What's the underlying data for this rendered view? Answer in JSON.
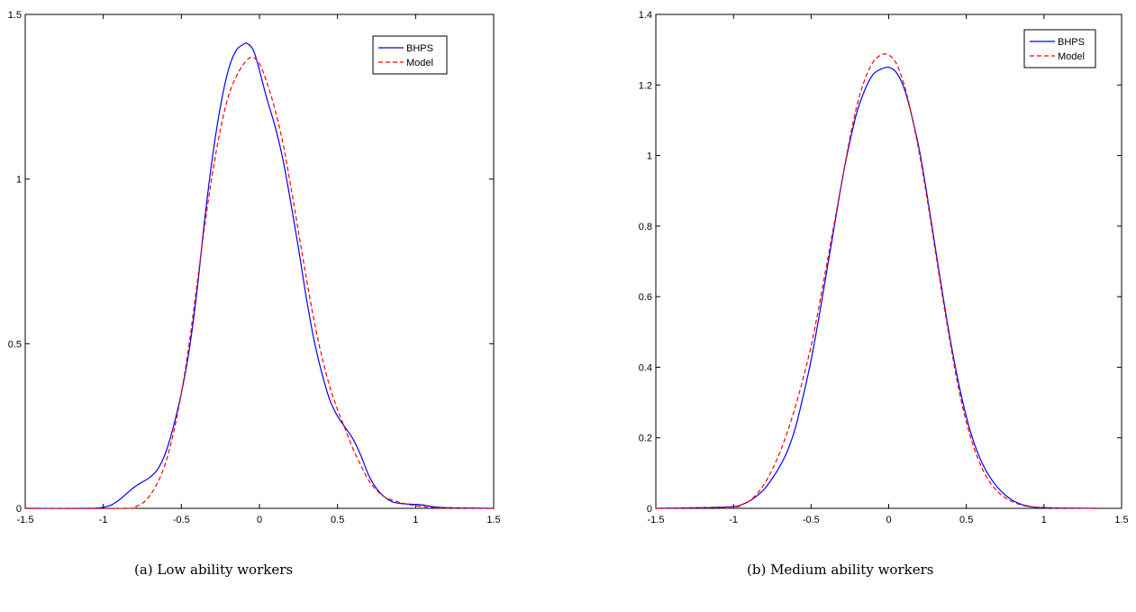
{
  "chart_data": [
    {
      "type": "line",
      "caption": "(a)  Low ability workers",
      "xlim": [
        -1.5,
        1.5
      ],
      "ylim": [
        0,
        1.5
      ],
      "xticks": [
        -1.5,
        -1,
        -0.5,
        0,
        0.5,
        1,
        1.5
      ],
      "xtick_labels": [
        "-1.5",
        "-1",
        "-0.5",
        "0",
        "0.5",
        "1",
        "1.5"
      ],
      "yticks": [
        0,
        0.5,
        1,
        1.5
      ],
      "ytick_labels": [
        "0",
        "0.5",
        "1",
        "1.5"
      ],
      "legend_position": "top-right",
      "grid": false,
      "series": [
        {
          "name": "BHPS",
          "color": "#0000ff",
          "style": "solid",
          "x": [
            -1.5,
            -1.1,
            -1.0,
            -0.95,
            -0.9,
            -0.85,
            -0.8,
            -0.75,
            -0.7,
            -0.65,
            -0.6,
            -0.55,
            -0.5,
            -0.45,
            -0.4,
            -0.35,
            -0.3,
            -0.25,
            -0.2,
            -0.15,
            -0.1,
            -0.08,
            -0.05,
            -0.03,
            0,
            0.05,
            0.1,
            0.15,
            0.2,
            0.25,
            0.3,
            0.35,
            0.4,
            0.45,
            0.5,
            0.55,
            0.6,
            0.65,
            0.7,
            0.75,
            0.8,
            0.85,
            0.9,
            0.95,
            1.0,
            1.05,
            1.1,
            1.2,
            1.5
          ],
          "y": [
            0,
            0,
            0.003,
            0.01,
            0.025,
            0.045,
            0.065,
            0.08,
            0.095,
            0.12,
            0.17,
            0.25,
            0.35,
            0.48,
            0.66,
            0.88,
            1.07,
            1.22,
            1.33,
            1.39,
            1.41,
            1.412,
            1.4,
            1.38,
            1.33,
            1.24,
            1.16,
            1.06,
            0.93,
            0.79,
            0.64,
            0.51,
            0.41,
            0.33,
            0.28,
            0.245,
            0.21,
            0.16,
            0.1,
            0.06,
            0.035,
            0.02,
            0.015,
            0.013,
            0.012,
            0.01,
            0.006,
            0.002,
            0
          ]
        },
        {
          "name": "Model",
          "color": "#ff0000",
          "style": "dashed",
          "x": [
            -1.5,
            -0.85,
            -0.8,
            -0.75,
            -0.7,
            -0.65,
            -0.6,
            -0.55,
            -0.5,
            -0.45,
            -0.4,
            -0.35,
            -0.3,
            -0.25,
            -0.2,
            -0.15,
            -0.1,
            -0.05,
            0,
            0.05,
            0.1,
            0.15,
            0.2,
            0.25,
            0.3,
            0.35,
            0.4,
            0.45,
            0.5,
            0.55,
            0.6,
            0.65,
            0.7,
            0.75,
            0.8,
            0.85,
            0.9,
            0.95,
            1.0,
            1.05,
            1.1,
            1.2,
            1.5
          ],
          "y": [
            0,
            0,
            0.005,
            0.015,
            0.04,
            0.08,
            0.14,
            0.23,
            0.35,
            0.5,
            0.68,
            0.86,
            1.02,
            1.15,
            1.25,
            1.31,
            1.35,
            1.37,
            1.35,
            1.29,
            1.21,
            1.11,
            0.98,
            0.84,
            0.7,
            0.57,
            0.46,
            0.37,
            0.3,
            0.24,
            0.18,
            0.13,
            0.085,
            0.055,
            0.035,
            0.025,
            0.018,
            0.012,
            0.008,
            0.005,
            0.003,
            0.001,
            0
          ]
        }
      ]
    },
    {
      "type": "line",
      "caption": "(b)  Medium ability workers",
      "xlim": [
        -1.5,
        1.5
      ],
      "ylim": [
        0,
        1.4
      ],
      "xticks": [
        -1.5,
        -1,
        -0.5,
        0,
        0.5,
        1,
        1.5
      ],
      "xtick_labels": [
        "-1.5",
        "-1",
        "-0.5",
        "0",
        "0.5",
        "1",
        "1.5"
      ],
      "yticks": [
        0,
        0.2,
        0.4,
        0.6,
        0.8,
        1,
        1.2,
        1.4
      ],
      "ytick_labels": [
        "0",
        "0.2",
        "0.4",
        "0.6",
        "0.8",
        "1",
        "1.2",
        "1.4"
      ],
      "legend_position": "top-right",
      "grid": false,
      "series": [
        {
          "name": "BHPS",
          "color": "#0000ff",
          "style": "solid",
          "x": [
            -1.5,
            -1.2,
            -1.0,
            -0.95,
            -0.9,
            -0.85,
            -0.8,
            -0.75,
            -0.7,
            -0.65,
            -0.6,
            -0.55,
            -0.5,
            -0.45,
            -0.4,
            -0.35,
            -0.3,
            -0.25,
            -0.2,
            -0.15,
            -0.1,
            -0.05,
            0,
            0.05,
            0.1,
            0.15,
            0.2,
            0.25,
            0.3,
            0.35,
            0.4,
            0.45,
            0.5,
            0.55,
            0.6,
            0.65,
            0.7,
            0.75,
            0.8,
            0.85,
            0.9,
            0.95,
            1.0,
            1.1,
            1.35
          ],
          "y": [
            0,
            0.002,
            0.005,
            0.01,
            0.02,
            0.035,
            0.055,
            0.085,
            0.12,
            0.165,
            0.23,
            0.32,
            0.42,
            0.54,
            0.67,
            0.8,
            0.93,
            1.04,
            1.13,
            1.19,
            1.23,
            1.245,
            1.25,
            1.235,
            1.19,
            1.11,
            1.01,
            0.88,
            0.74,
            0.6,
            0.47,
            0.355,
            0.26,
            0.185,
            0.13,
            0.09,
            0.06,
            0.038,
            0.022,
            0.012,
            0.006,
            0.003,
            0.002,
            0.001,
            0
          ]
        },
        {
          "name": "Model",
          "color": "#ff0000",
          "style": "dashed",
          "x": [
            -1.5,
            -1.0,
            -0.95,
            -0.9,
            -0.85,
            -0.8,
            -0.75,
            -0.7,
            -0.65,
            -0.6,
            -0.55,
            -0.5,
            -0.45,
            -0.4,
            -0.35,
            -0.3,
            -0.25,
            -0.2,
            -0.15,
            -0.1,
            -0.05,
            0,
            0.05,
            0.1,
            0.15,
            0.2,
            0.25,
            0.3,
            0.35,
            0.4,
            0.45,
            0.5,
            0.55,
            0.6,
            0.65,
            0.7,
            0.75,
            0.8,
            0.85,
            0.9,
            0.95,
            1.0,
            1.1,
            1.35
          ],
          "y": [
            0,
            0.004,
            0.01,
            0.02,
            0.04,
            0.07,
            0.11,
            0.16,
            0.22,
            0.29,
            0.37,
            0.46,
            0.57,
            0.69,
            0.81,
            0.93,
            1.05,
            1.15,
            1.22,
            1.265,
            1.285,
            1.285,
            1.26,
            1.2,
            1.11,
            1.0,
            0.87,
            0.73,
            0.59,
            0.46,
            0.34,
            0.245,
            0.17,
            0.115,
            0.075,
            0.048,
            0.03,
            0.018,
            0.01,
            0.005,
            0.003,
            0.002,
            0.001,
            0
          ]
        }
      ]
    }
  ]
}
